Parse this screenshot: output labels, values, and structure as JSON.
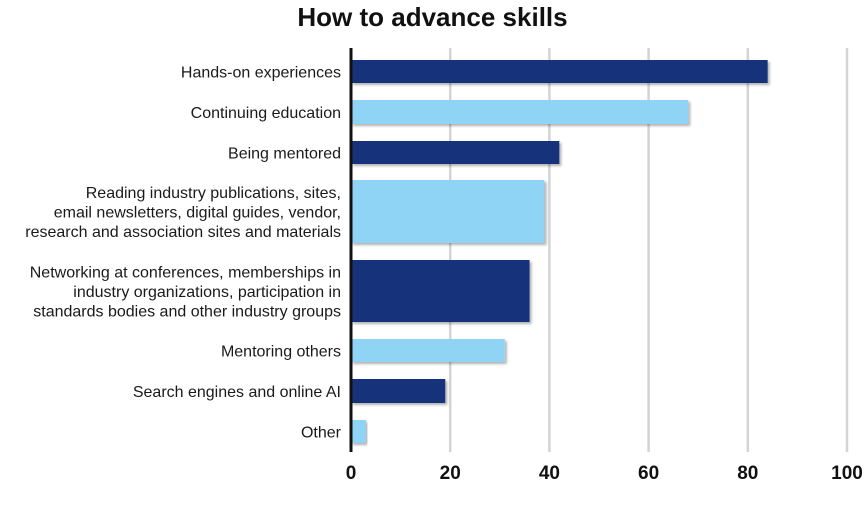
{
  "chart_data": {
    "type": "bar",
    "orientation": "horizontal",
    "title": "How to advance skills",
    "categories": [
      [
        "Hands-on experiences"
      ],
      [
        "Continuing education"
      ],
      [
        "Being mentored"
      ],
      [
        "Reading industry publications, sites,",
        "email newsletters, digital guides, vendor,",
        "research and association sites and materials"
      ],
      [
        "Networking at conferences, memberships in",
        "industry organizations, participation in",
        "standards bodies and other industry groups"
      ],
      [
        "Mentoring others"
      ],
      [
        "Search engines and online AI"
      ],
      [
        "Other"
      ]
    ],
    "values": [
      84,
      68,
      42,
      39,
      36,
      31,
      19,
      3
    ],
    "bar_colors": [
      "#12307a",
      "#8fd3f5",
      "#12307a",
      "#8fd3f5",
      "#12307a",
      "#8fd3f5",
      "#12307a",
      "#8fd3f5"
    ],
    "xlim": [
      0,
      100
    ],
    "xticks": [
      0,
      20,
      40,
      60,
      80,
      100
    ],
    "grid": true,
    "xlabel": "",
    "ylabel": ""
  }
}
